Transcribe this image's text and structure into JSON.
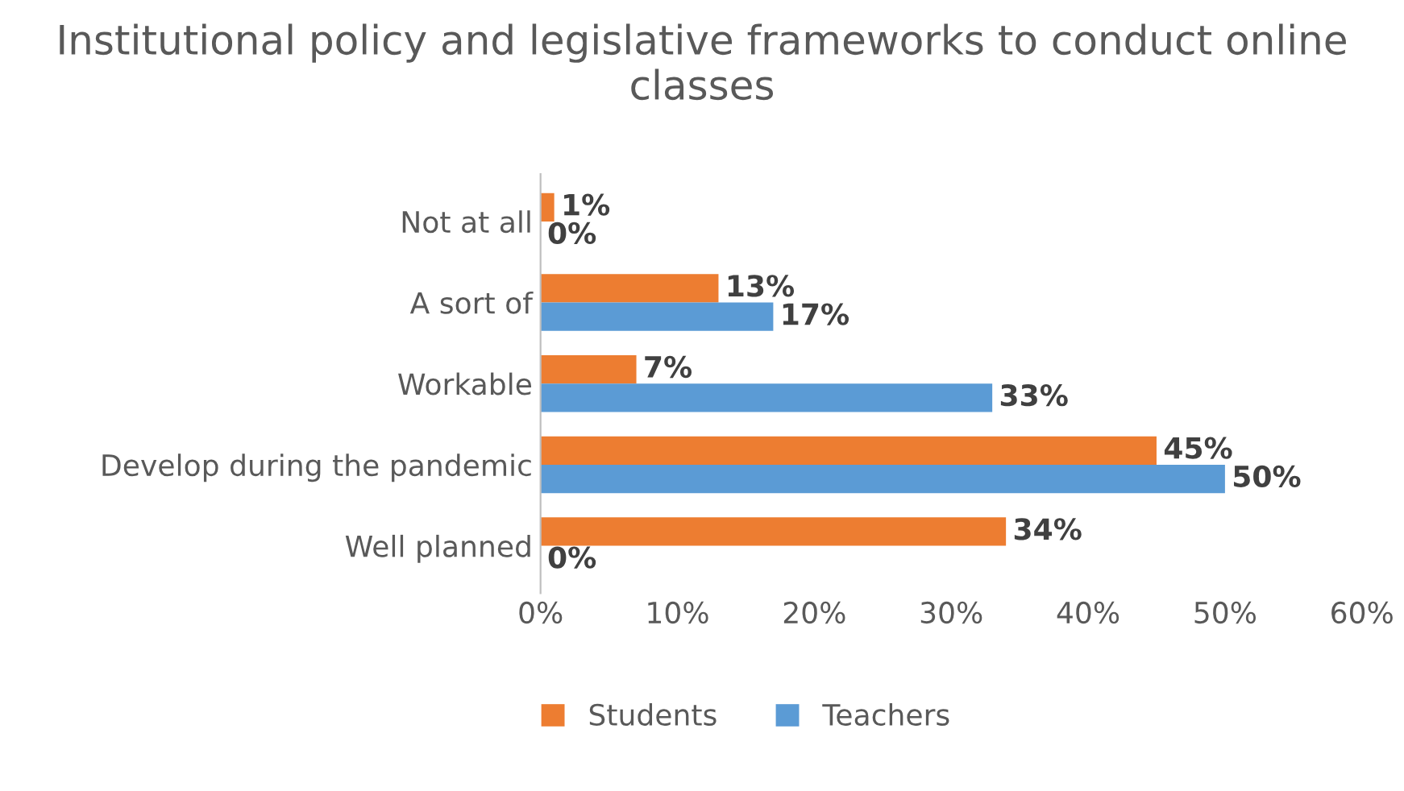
{
  "chart_data": {
    "type": "bar",
    "orientation": "horizontal",
    "title": "Institutional policy and legislative frameworks to conduct online classes",
    "categories": [
      "Not at all",
      "A sort of",
      "Workable",
      "Develop during the pandemic",
      "Well planned"
    ],
    "series": [
      {
        "name": "Students",
        "color": "#ed7d31",
        "values": [
          1,
          13,
          7,
          45,
          34
        ],
        "value_labels": [
          "1%",
          "13%",
          "7%",
          "45%",
          "34%"
        ]
      },
      {
        "name": "Teachers",
        "color": "#5b9bd5",
        "values": [
          0,
          17,
          33,
          50,
          0
        ],
        "value_labels": [
          "0%",
          "17%",
          "33%",
          "50%",
          "0%"
        ]
      }
    ],
    "xlim": [
      0,
      60
    ],
    "xticks": [
      {
        "value": 0,
        "label": "0%"
      },
      {
        "value": 10,
        "label": "10%"
      },
      {
        "value": 20,
        "label": "20%"
      },
      {
        "value": 30,
        "label": "30%"
      },
      {
        "value": 40,
        "label": "40%"
      },
      {
        "value": 50,
        "label": "50%"
      },
      {
        "value": 60,
        "label": "60%"
      }
    ],
    "grid": false,
    "legend": "bottom"
  }
}
